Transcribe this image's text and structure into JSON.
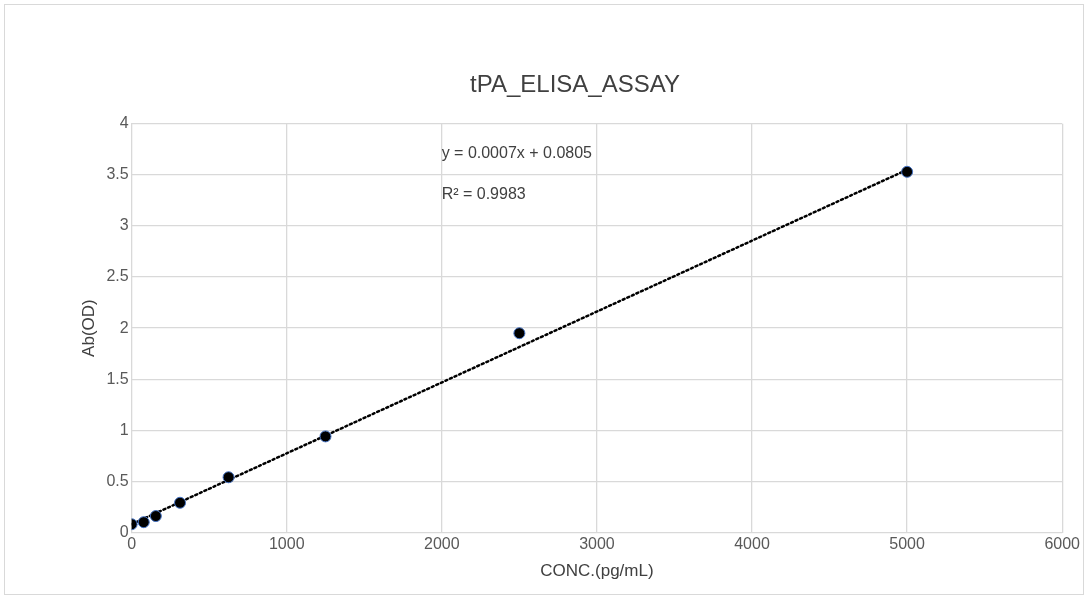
{
  "chart_data": {
    "type": "scatter",
    "title": "tPA_ELISA_ASSAY",
    "xlabel": "CONC.(pg/mL)",
    "ylabel": "Ab(OD)",
    "xlim": [
      0,
      6000
    ],
    "xticks": [
      0,
      1000,
      2000,
      3000,
      4000,
      5000,
      6000
    ],
    "ylim": [
      0,
      4
    ],
    "yticks": [
      0,
      0.5,
      1,
      1.5,
      2,
      2.5,
      3,
      3.5,
      4
    ],
    "grid": true,
    "legend": false,
    "marker": "circle",
    "series": [
      {
        "type": "scatter",
        "color": "#000000",
        "x": [
          0,
          78,
          156,
          312,
          625,
          1250,
          2500,
          5000
        ],
        "values": [
          0.08,
          0.1,
          0.16,
          0.29,
          0.54,
          0.94,
          1.95,
          3.53
        ]
      },
      {
        "type": "line",
        "color": "#000000",
        "line_style": "dotted",
        "marker": "none",
        "x": [
          0,
          5000
        ],
        "values": [
          0.08,
          3.55
        ]
      }
    ],
    "annotations": [
      "y = 0.0007x + 0.0805",
      "R² = 0.9983"
    ]
  }
}
